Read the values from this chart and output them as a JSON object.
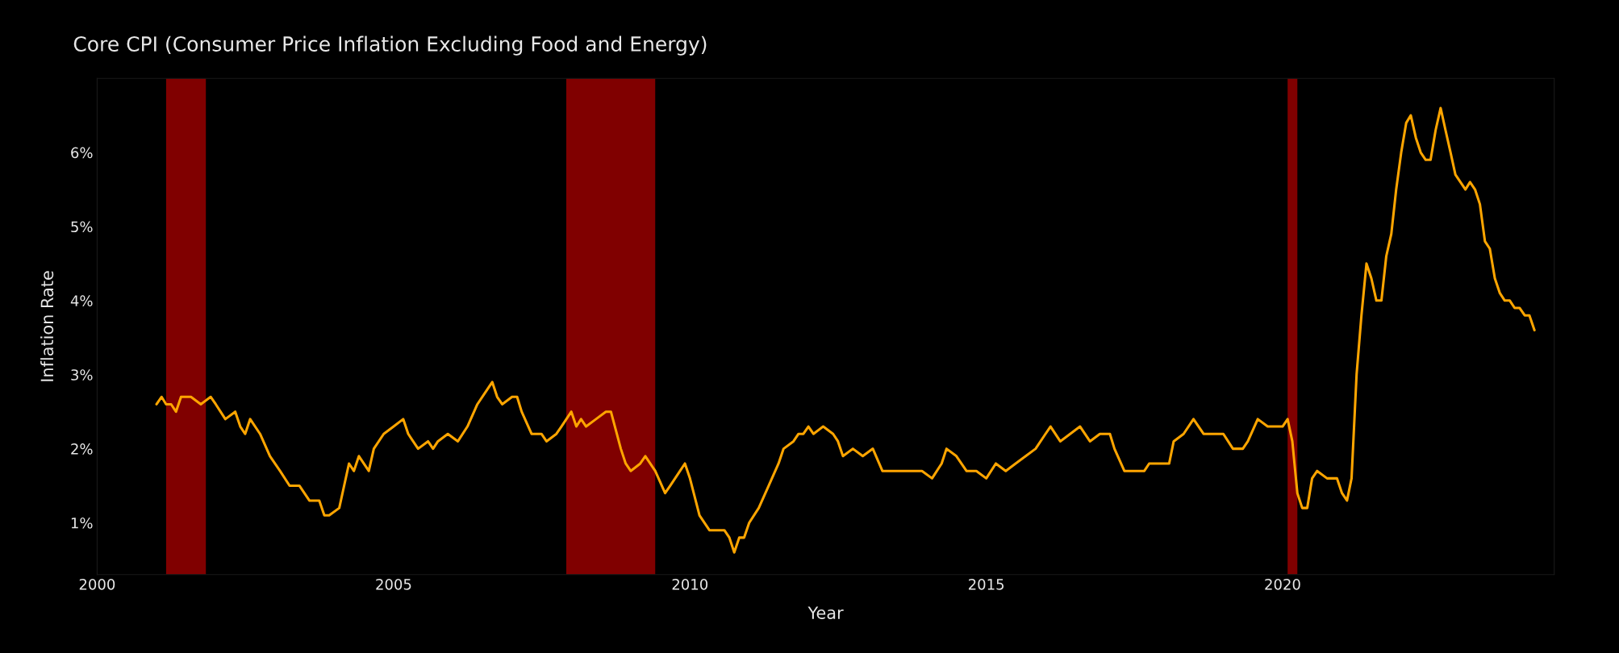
{
  "chart_data": {
    "type": "line",
    "title": "Core CPI (Consumer Price Inflation Excluding Food and Energy)",
    "xlabel": "Year",
    "ylabel": "Inflation Rate",
    "x": [
      "2001-01",
      "2001-02",
      "2001-03",
      "2001-04",
      "2001-05",
      "2001-06",
      "2001-08",
      "2001-10",
      "2001-12",
      "2002-01",
      "2002-03",
      "2002-05",
      "2002-06",
      "2002-07",
      "2002-08",
      "2002-10",
      "2002-12",
      "2003-02",
      "2003-04",
      "2003-06",
      "2003-08",
      "2003-10",
      "2003-11",
      "2003-12",
      "2004-02",
      "2004-04",
      "2004-05",
      "2004-06",
      "2004-08",
      "2004-09",
      "2004-11",
      "2005-01",
      "2005-03",
      "2005-04",
      "2005-06",
      "2005-08",
      "2005-09",
      "2005-10",
      "2005-12",
      "2006-02",
      "2006-04",
      "2006-06",
      "2006-08",
      "2006-09",
      "2006-10",
      "2006-11",
      "2007-01",
      "2007-02",
      "2007-03",
      "2007-05",
      "2007-07",
      "2007-08",
      "2007-10",
      "2007-11",
      "2008-01",
      "2008-02",
      "2008-03",
      "2008-04",
      "2008-06",
      "2008-08",
      "2008-09",
      "2008-11",
      "2008-12",
      "2009-01",
      "2009-03",
      "2009-04",
      "2009-06",
      "2009-08",
      "2009-09",
      "2009-11",
      "2009-12",
      "2010-01",
      "2010-03",
      "2010-05",
      "2010-07",
      "2010-08",
      "2010-09",
      "2010-10",
      "2010-11",
      "2010-12",
      "2011-01",
      "2011-03",
      "2011-05",
      "2011-07",
      "2011-08",
      "2011-10",
      "2011-11",
      "2011-12",
      "2012-01",
      "2012-02",
      "2012-04",
      "2012-06",
      "2012-07",
      "2012-08",
      "2012-10",
      "2012-12",
      "2013-02",
      "2013-04",
      "2013-05",
      "2013-07",
      "2013-09",
      "2013-11",
      "2013-12",
      "2014-02",
      "2014-04",
      "2014-05",
      "2014-07",
      "2014-09",
      "2014-11",
      "2015-01",
      "2015-03",
      "2015-05",
      "2015-07",
      "2015-09",
      "2015-11",
      "2016-01",
      "2016-02",
      "2016-04",
      "2016-06",
      "2016-08",
      "2016-10",
      "2016-12",
      "2017-02",
      "2017-03",
      "2017-05",
      "2017-07",
      "2017-09",
      "2017-10",
      "2017-12",
      "2018-02",
      "2018-03",
      "2018-05",
      "2018-07",
      "2018-09",
      "2018-11",
      "2019-01",
      "2019-03",
      "2019-05",
      "2019-06",
      "2019-08",
      "2019-10",
      "2019-12",
      "2020-01",
      "2020-02",
      "2020-03",
      "2020-04",
      "2020-05",
      "2020-06",
      "2020-07",
      "2020-08",
      "2020-10",
      "2020-12",
      "2021-01",
      "2021-02",
      "2021-03",
      "2021-04",
      "2021-05",
      "2021-06",
      "2021-07",
      "2021-08",
      "2021-09",
      "2021-10",
      "2021-11",
      "2021-12",
      "2022-01",
      "2022-02",
      "2022-03",
      "2022-04",
      "2022-05",
      "2022-06",
      "2022-07",
      "2022-08",
      "2022-09",
      "2022-10",
      "2022-11",
      "2022-12",
      "2023-01",
      "2023-02",
      "2023-03",
      "2023-04",
      "2023-05",
      "2023-06",
      "2023-07",
      "2023-08",
      "2023-09",
      "2023-10",
      "2023-11",
      "2023-12",
      "2024-01",
      "2024-02",
      "2024-03",
      "2024-04"
    ],
    "series": [
      {
        "color": "#ffa500",
        "values": [
          2.6,
          2.7,
          2.6,
          2.6,
          2.5,
          2.7,
          2.7,
          2.6,
          2.7,
          2.6,
          2.4,
          2.5,
          2.3,
          2.2,
          2.4,
          2.2,
          1.9,
          1.7,
          1.5,
          1.5,
          1.3,
          1.3,
          1.1,
          1.1,
          1.2,
          1.8,
          1.7,
          1.9,
          1.7,
          2.0,
          2.2,
          2.3,
          2.4,
          2.2,
          2.0,
          2.1,
          2.0,
          2.1,
          2.2,
          2.1,
          2.3,
          2.6,
          2.8,
          2.9,
          2.7,
          2.6,
          2.7,
          2.7,
          2.5,
          2.2,
          2.2,
          2.1,
          2.2,
          2.3,
          2.5,
          2.3,
          2.4,
          2.3,
          2.4,
          2.5,
          2.5,
          2.0,
          1.8,
          1.7,
          1.8,
          1.9,
          1.7,
          1.4,
          1.5,
          1.7,
          1.8,
          1.6,
          1.1,
          0.9,
          0.9,
          0.9,
          0.8,
          0.6,
          0.8,
          0.8,
          1.0,
          1.2,
          1.5,
          1.8,
          2.0,
          2.1,
          2.2,
          2.2,
          2.3,
          2.2,
          2.3,
          2.2,
          2.1,
          1.9,
          2.0,
          1.9,
          2.0,
          1.7,
          1.7,
          1.7,
          1.7,
          1.7,
          1.7,
          1.6,
          1.8,
          2.0,
          1.9,
          1.7,
          1.7,
          1.6,
          1.8,
          1.7,
          1.8,
          1.9,
          2.0,
          2.2,
          2.3,
          2.1,
          2.2,
          2.3,
          2.1,
          2.2,
          2.2,
          2.0,
          1.7,
          1.7,
          1.7,
          1.8,
          1.8,
          1.8,
          2.1,
          2.2,
          2.4,
          2.2,
          2.2,
          2.2,
          2.0,
          2.0,
          2.1,
          2.4,
          2.3,
          2.3,
          2.3,
          2.4,
          2.1,
          1.4,
          1.2,
          1.2,
          1.6,
          1.7,
          1.6,
          1.6,
          1.4,
          1.3,
          1.6,
          3.0,
          3.8,
          4.5,
          4.3,
          4.0,
          4.0,
          4.6,
          4.9,
          5.5,
          6.0,
          6.4,
          6.5,
          6.2,
          6.0,
          5.9,
          5.9,
          6.3,
          6.6,
          6.3,
          6.0,
          5.7,
          5.6,
          5.5,
          5.6,
          5.5,
          5.3,
          4.8,
          4.7,
          4.3,
          4.1,
          4.0,
          4.0,
          3.9,
          3.9,
          3.8,
          3.8,
          3.6
        ]
      }
    ],
    "xlim": [
      "2000-01-01",
      "2024-08-01"
    ],
    "ylim": [
      0.3,
      7.0
    ],
    "xticks": [
      {
        "value": "2000",
        "label": "2000"
      },
      {
        "value": "2005",
        "label": "2005"
      },
      {
        "value": "2010",
        "label": "2010"
      },
      {
        "value": "2015",
        "label": "2015"
      },
      {
        "value": "2020",
        "label": "2020"
      }
    ],
    "yticks": [
      {
        "value": 1,
        "label": "1%"
      },
      {
        "value": 2,
        "label": "2%"
      },
      {
        "value": 3,
        "label": "3%"
      },
      {
        "value": 4,
        "label": "4%"
      },
      {
        "value": 5,
        "label": "5%"
      },
      {
        "value": 6,
        "label": "6%"
      }
    ],
    "bands": [
      {
        "axis": "x",
        "from": "2001-03",
        "to": "2001-11",
        "color": "#800000"
      },
      {
        "axis": "x",
        "from": "2007-12",
        "to": "2009-06",
        "color": "#800000"
      },
      {
        "axis": "x",
        "from": "2020-02",
        "to": "2020-04",
        "color": "#800000"
      }
    ],
    "grid": false
  }
}
